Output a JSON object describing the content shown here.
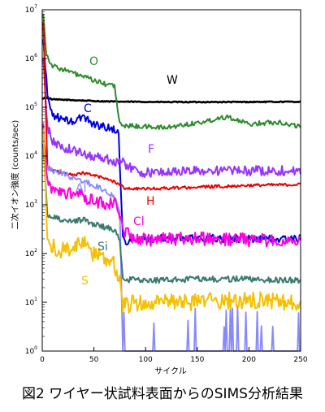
{
  "chart_data": {
    "type": "line",
    "title": "図2 ワイヤー状試料表面からのSIMS分析結果",
    "xlabel": "サイクル",
    "ylabel": "二次イオン強度 (counts/sec)",
    "xlim": [
      0,
      250
    ],
    "ylim": [
      1,
      10000000
    ],
    "yscale": "log",
    "x_ticks": [
      0,
      50,
      100,
      150,
      200,
      250
    ],
    "y_tick_exponents": [
      0,
      1,
      2,
      3,
      4,
      5,
      6,
      7
    ],
    "grid": false,
    "legend": "inline labels",
    "series": [
      {
        "name": "W",
        "color": "#000000",
        "points": [
          [
            0,
            150000
          ],
          [
            3,
            160000
          ],
          [
            10,
            145000
          ],
          [
            30,
            140000
          ],
          [
            60,
            132000
          ],
          [
            80,
            130000
          ],
          [
            120,
            128000
          ],
          [
            180,
            128000
          ],
          [
            250,
            130000
          ]
        ]
      },
      {
        "name": "O",
        "color": "#2e8b2e",
        "points": [
          [
            1,
            9000000
          ],
          [
            4,
            1200000
          ],
          [
            10,
            700000
          ],
          [
            20,
            600000
          ],
          [
            40,
            420000
          ],
          [
            60,
            300000
          ],
          [
            70,
            280000
          ],
          [
            72,
            120000
          ],
          [
            75,
            45000
          ],
          [
            80,
            42000
          ],
          [
            100,
            40000
          ],
          [
            120,
            38000
          ],
          [
            140,
            45000
          ],
          [
            150,
            48000
          ],
          [
            160,
            52000
          ],
          [
            170,
            60000
          ],
          [
            180,
            65000
          ],
          [
            190,
            52000
          ],
          [
            200,
            45000
          ],
          [
            215,
            48000
          ],
          [
            230,
            50000
          ],
          [
            240,
            43000
          ],
          [
            250,
            42000
          ]
        ]
      },
      {
        "name": "C",
        "color": "#0000dd",
        "points": [
          [
            1,
            2500000
          ],
          [
            5,
            180000
          ],
          [
            10,
            70000
          ],
          [
            20,
            55000
          ],
          [
            30,
            50000
          ],
          [
            40,
            65000
          ],
          [
            50,
            45000
          ],
          [
            60,
            40000
          ],
          [
            70,
            35000
          ],
          [
            74,
            30000
          ],
          [
            76,
            2000
          ],
          [
            78,
            200
          ],
          [
            80,
            180
          ],
          [
            100,
            200
          ],
          [
            150,
            210
          ],
          [
            200,
            200
          ],
          [
            250,
            200
          ]
        ]
      },
      {
        "name": "F",
        "color": "#9933ff",
        "points": [
          [
            1,
            900000
          ],
          [
            5,
            40000
          ],
          [
            10,
            20000
          ],
          [
            20,
            15000
          ],
          [
            30,
            13000
          ],
          [
            40,
            11000
          ],
          [
            50,
            10000
          ],
          [
            60,
            9000
          ],
          [
            70,
            8000
          ],
          [
            80,
            7000
          ],
          [
            90,
            5000
          ],
          [
            100,
            4500
          ],
          [
            150,
            5000
          ],
          [
            200,
            5000
          ],
          [
            250,
            5000
          ]
        ]
      },
      {
        "name": "H",
        "color": "#ee0000",
        "points": [
          [
            1,
            6000000
          ],
          [
            5,
            6000
          ],
          [
            10,
            5000
          ],
          [
            20,
            4500
          ],
          [
            30,
            4000
          ],
          [
            40,
            4500
          ],
          [
            50,
            4000
          ],
          [
            60,
            3500
          ],
          [
            70,
            3000
          ],
          [
            80,
            2200
          ],
          [
            100,
            2100
          ],
          [
            150,
            2300
          ],
          [
            200,
            2500
          ],
          [
            250,
            2600
          ]
        ]
      },
      {
        "name": "Al",
        "color": "#8888ff",
        "points": [
          [
            1,
            12000
          ],
          [
            5,
            6000
          ],
          [
            10,
            5000
          ],
          [
            20,
            4500
          ],
          [
            30,
            3500
          ],
          [
            40,
            3000
          ],
          [
            50,
            2500
          ],
          [
            60,
            2000
          ],
          [
            70,
            1500
          ],
          [
            75,
            800
          ],
          [
            78,
            1
          ],
          [
            250,
            1
          ]
        ]
      },
      {
        "name": "Cl",
        "color": "#ff00dd",
        "points": [
          [
            1,
            40000
          ],
          [
            5,
            2500
          ],
          [
            10,
            2000
          ],
          [
            20,
            1800
          ],
          [
            30,
            1700
          ],
          [
            40,
            1500
          ],
          [
            50,
            1200
          ],
          [
            60,
            1100
          ],
          [
            70,
            1000
          ],
          [
            75,
            700
          ],
          [
            80,
            300
          ],
          [
            90,
            180
          ],
          [
            100,
            190
          ],
          [
            150,
            200
          ],
          [
            200,
            190
          ],
          [
            250,
            180
          ]
        ]
      },
      {
        "name": "Si",
        "color": "#3a7a6e",
        "points": [
          [
            1,
            20000
          ],
          [
            5,
            600
          ],
          [
            10,
            550
          ],
          [
            20,
            500
          ],
          [
            30,
            450
          ],
          [
            40,
            500
          ],
          [
            50,
            400
          ],
          [
            60,
            350
          ],
          [
            70,
            300
          ],
          [
            75,
            200
          ],
          [
            78,
            30
          ],
          [
            100,
            28
          ],
          [
            150,
            30
          ],
          [
            200,
            30
          ],
          [
            250,
            28
          ]
        ]
      },
      {
        "name": "S",
        "color": "#f5c000",
        "points": [
          [
            1,
            40000
          ],
          [
            5,
            150
          ],
          [
            10,
            130
          ],
          [
            20,
            120
          ],
          [
            30,
            140
          ],
          [
            40,
            160
          ],
          [
            50,
            100
          ],
          [
            60,
            80
          ],
          [
            70,
            60
          ],
          [
            75,
            30
          ],
          [
            78,
            8
          ],
          [
            90,
            10
          ],
          [
            150,
            10
          ],
          [
            200,
            11
          ],
          [
            250,
            10
          ]
        ]
      }
    ]
  }
}
